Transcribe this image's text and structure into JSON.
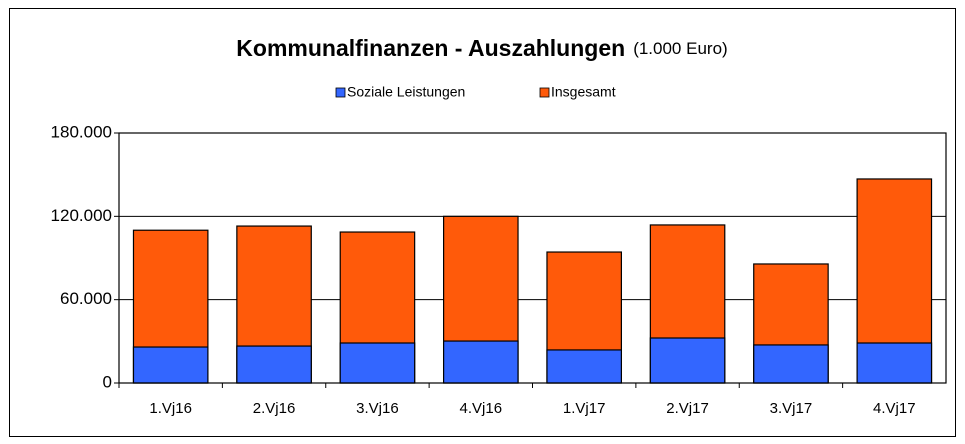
{
  "chart_data": {
    "type": "bar",
    "overlap": true,
    "title": "Kommunalfinanzen - Auszahlungen",
    "subtitle": "(1.000 Euro)",
    "categories": [
      "1.Vj16",
      "2.Vj16",
      "3.Vj16",
      "4.Vj16",
      "1.Vj17",
      "2.Vj17",
      "3.Vj17",
      "4.Vj17"
    ],
    "series": [
      {
        "name": "Soziale Leistungen",
        "color": "#3366ff",
        "values": [
          25900,
          26600,
          28800,
          30200,
          23800,
          32400,
          27400,
          28800
        ]
      },
      {
        "name": "Insgesamt",
        "color": "#ff5a0a",
        "values": [
          110000,
          113000,
          108700,
          120000,
          94300,
          113800,
          85700,
          146900
        ]
      }
    ],
    "ylim": [
      0,
      180000
    ],
    "yticks": [
      0,
      {
        "value": 60000,
        "label": "60.000"
      },
      {
        "value": 120000,
        "label": "120.000"
      },
      {
        "value": 180000,
        "label": "180.000"
      }
    ],
    "grid": true
  }
}
